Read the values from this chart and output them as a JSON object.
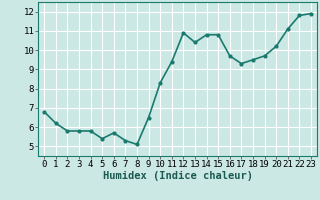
{
  "x": [
    0,
    1,
    2,
    3,
    4,
    5,
    6,
    7,
    8,
    9,
    10,
    11,
    12,
    13,
    14,
    15,
    16,
    17,
    18,
    19,
    20,
    21,
    22,
    23
  ],
  "y": [
    6.8,
    6.2,
    5.8,
    5.8,
    5.8,
    5.4,
    5.7,
    5.3,
    5.1,
    6.5,
    8.3,
    9.4,
    10.9,
    10.4,
    10.8,
    10.8,
    9.7,
    9.3,
    9.5,
    9.7,
    10.2,
    11.1,
    11.8,
    11.9
  ],
  "line_color": "#1a7a6e",
  "marker": "o",
  "marker_size": 2.0,
  "bg_color": "#cce8e4",
  "grid_color": "#ffffff",
  "xlabel": "Humidex (Indice chaleur)",
  "xlabel_fontsize": 7.5,
  "xlim": [
    -0.5,
    23.5
  ],
  "ylim": [
    4.5,
    12.5
  ],
  "yticks": [
    5,
    6,
    7,
    8,
    9,
    10,
    11,
    12
  ],
  "xticks": [
    0,
    1,
    2,
    3,
    4,
    5,
    6,
    7,
    8,
    9,
    10,
    11,
    12,
    13,
    14,
    15,
    16,
    17,
    18,
    19,
    20,
    21,
    22,
    23
  ],
  "tick_fontsize": 6.5,
  "line_width": 1.2
}
